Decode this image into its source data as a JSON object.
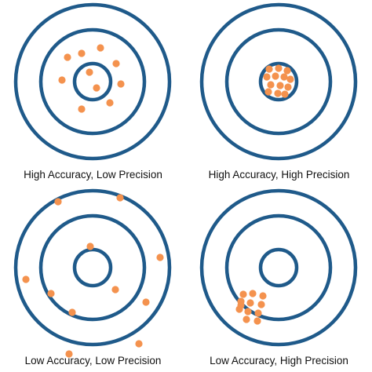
{
  "colors": {
    "ring": "#1f5a8a",
    "shot": "#f4924e",
    "background": "#ffffff"
  },
  "panels": [
    {
      "caption": "High Accuracy, Low Precision",
      "shots": [
        [
          -32,
          -31
        ],
        [
          -14,
          -36
        ],
        [
          10,
          -43
        ],
        [
          30,
          -23
        ],
        [
          -4,
          -12
        ],
        [
          -39,
          -2
        ],
        [
          5,
          8
        ],
        [
          36,
          3
        ],
        [
          -14,
          35
        ],
        [
          22,
          27
        ]
      ]
    },
    {
      "caption": "High Accuracy, High Precision",
      "shots": [
        [
          -12,
          -16
        ],
        [
          0,
          -17
        ],
        [
          11,
          -14
        ],
        [
          -15,
          -6
        ],
        [
          -4,
          -7
        ],
        [
          7,
          -6
        ],
        [
          15,
          -3
        ],
        [
          -10,
          4
        ],
        [
          2,
          5
        ],
        [
          12,
          7
        ],
        [
          -13,
          13
        ],
        [
          -1,
          15
        ],
        [
          8,
          16
        ]
      ]
    },
    {
      "caption": "Low Accuracy, Low Precision",
      "shots": [
        [
          -44,
          -84
        ],
        [
          35,
          -89
        ],
        [
          -3,
          -27
        ],
        [
          86,
          -13
        ],
        [
          -85,
          15
        ],
        [
          -53,
          33
        ],
        [
          29,
          28
        ],
        [
          68,
          44
        ],
        [
          -26,
          57
        ],
        [
          59,
          97
        ],
        [
          -30,
          110
        ]
      ]
    },
    {
      "caption": "Low Accuracy, High Precision",
      "shots": [
        [
          -45,
          34
        ],
        [
          -33,
          33
        ],
        [
          -20,
          36
        ],
        [
          -48,
          43
        ],
        [
          -36,
          45
        ],
        [
          -22,
          47
        ],
        [
          -50,
          53
        ],
        [
          -39,
          56
        ],
        [
          -26,
          58
        ],
        [
          -41,
          66
        ],
        [
          -27,
          68
        ],
        [
          -48,
          48
        ]
      ]
    }
  ]
}
